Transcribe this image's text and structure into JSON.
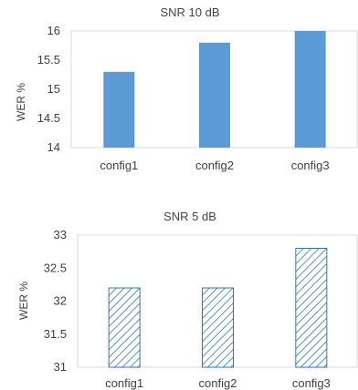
{
  "chart_data": [
    {
      "type": "bar",
      "title": "SNR 10 dB",
      "ylabel": "WER %",
      "xlabel": "",
      "categories": [
        "config1",
        "config2",
        "config3"
      ],
      "values": [
        15.3,
        15.8,
        16.0
      ],
      "ylim": [
        14,
        16
      ],
      "yticks": [
        "14",
        "14.5",
        "15",
        "15.5",
        "16"
      ],
      "bar_color": "#5b9bd5",
      "bar_style": "solid",
      "legend": "none"
    },
    {
      "type": "bar",
      "title": "SNR 5 dB",
      "ylabel": "WER %",
      "xlabel": "",
      "categories": [
        "config1",
        "config2",
        "config3"
      ],
      "values": [
        32.2,
        32.2,
        32.8
      ],
      "ylim": [
        31,
        33
      ],
      "yticks": [
        "31",
        "31.5",
        "32",
        "32.5",
        "33"
      ],
      "bar_color": "#2e75b6",
      "bar_style": "hatched",
      "legend": "none"
    }
  ]
}
